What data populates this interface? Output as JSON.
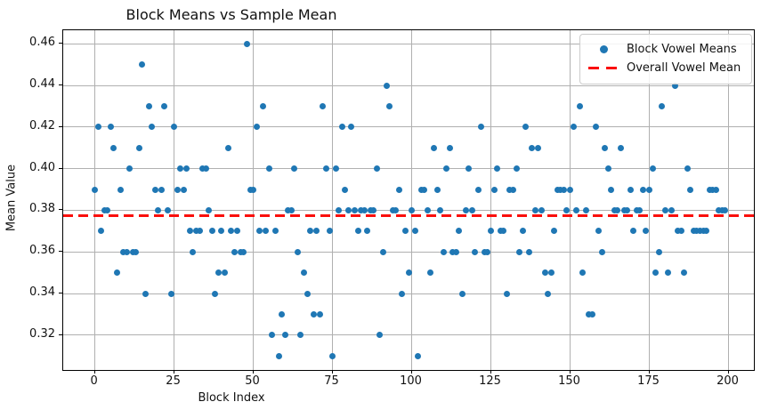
{
  "figure": {
    "title": "Block Means vs Sample Mean"
  },
  "axes": {
    "xlabel": "Block Index",
    "ylabel": "Mean Value",
    "xticks": [
      0,
      25,
      50,
      75,
      100,
      125,
      150,
      175,
      200
    ],
    "yticks": [
      0.32,
      0.34,
      0.36,
      0.38,
      0.4,
      0.42,
      0.44,
      0.46
    ]
  },
  "legend": {
    "items": [
      {
        "label": "Block Vowel Means",
        "marker": "dot",
        "color": "#1f77b4"
      },
      {
        "label": "Overall Vowel Mean",
        "marker": "dashes",
        "color": "#fa0f0c"
      }
    ]
  },
  "colors": {
    "points": "#1f77b4",
    "mean_line": "#fa0f0c",
    "grid": "#b0b0b0"
  },
  "chart_data": {
    "type": "scatter",
    "title": "Block Means vs Sample Mean",
    "xlabel": "Block Index",
    "ylabel": "Mean Value",
    "xlim": [
      -10,
      208
    ],
    "ylim": [
      0.3033,
      0.4665
    ],
    "grid": true,
    "legend_position": "upper right",
    "overall_mean": {
      "name": "Overall Vowel Mean",
      "value": 0.3776,
      "style": "dashed",
      "color": "#fa0f0c"
    },
    "series": [
      {
        "name": "Block Vowel Means",
        "marker": "circle",
        "color": "#1f77b4",
        "x": [
          0,
          1,
          2,
          3,
          4,
          5,
          6,
          7,
          8,
          9,
          10,
          11,
          12,
          13,
          14,
          15,
          16,
          17,
          18,
          19,
          20,
          21,
          22,
          23,
          24,
          25,
          26,
          27,
          28,
          29,
          30,
          31,
          32,
          33,
          34,
          35,
          36,
          37,
          38,
          39,
          40,
          41,
          42,
          43,
          44,
          45,
          46,
          47,
          48,
          49,
          50,
          51,
          52,
          53,
          54,
          55,
          56,
          57,
          58,
          59,
          60,
          61,
          62,
          63,
          64,
          65,
          66,
          67,
          68,
          69,
          70,
          71,
          72,
          73,
          74,
          75,
          76,
          77,
          78,
          79,
          80,
          81,
          82,
          83,
          84,
          85,
          86,
          87,
          88,
          89,
          90,
          91,
          92,
          93,
          94,
          95,
          96,
          97,
          98,
          99,
          100,
          101,
          102,
          103,
          104,
          105,
          106,
          107,
          108,
          109,
          110,
          111,
          112,
          113,
          114,
          115,
          116,
          117,
          118,
          119,
          120,
          121,
          122,
          123,
          124,
          125,
          126,
          127,
          128,
          129,
          130,
          131,
          132,
          133,
          134,
          135,
          136,
          137,
          138,
          139,
          140,
          141,
          142,
          143,
          144,
          145,
          146,
          147,
          148,
          149,
          150,
          151,
          152,
          153,
          154,
          155,
          156,
          157,
          158,
          159,
          160,
          161,
          162,
          163,
          164,
          165,
          166,
          167,
          168,
          169,
          170,
          171,
          172,
          173,
          174,
          175,
          176,
          177,
          178,
          179,
          180,
          181,
          182,
          183,
          184,
          185,
          186,
          187,
          188,
          189,
          190,
          191,
          192,
          193,
          194,
          195,
          196,
          197,
          198,
          199
        ],
        "y": [
          0.39,
          0.42,
          0.37,
          0.38,
          0.38,
          0.42,
          0.41,
          0.35,
          0.39,
          0.36,
          0.36,
          0.4,
          0.36,
          0.36,
          0.41,
          0.45,
          0.34,
          0.43,
          0.42,
          0.39,
          0.38,
          0.39,
          0.43,
          0.38,
          0.34,
          0.42,
          0.39,
          0.4,
          0.39,
          0.4,
          0.37,
          0.36,
          0.37,
          0.37,
          0.4,
          0.4,
          0.38,
          0.37,
          0.34,
          0.35,
          0.37,
          0.35,
          0.41,
          0.37,
          0.36,
          0.37,
          0.36,
          0.36,
          0.46,
          0.39,
          0.39,
          0.42,
          0.37,
          0.43,
          0.37,
          0.4,
          0.32,
          0.37,
          0.31,
          0.33,
          0.32,
          0.38,
          0.38,
          0.4,
          0.36,
          0.32,
          0.35,
          0.34,
          0.37,
          0.33,
          0.37,
          0.33,
          0.43,
          0.4,
          0.37,
          0.31,
          0.4,
          0.38,
          0.42,
          0.39,
          0.38,
          0.42,
          0.38,
          0.37,
          0.38,
          0.38,
          0.37,
          0.38,
          0.38,
          0.4,
          0.32,
          0.36,
          0.44,
          0.43,
          0.38,
          0.38,
          0.39,
          0.34,
          0.37,
          0.35,
          0.38,
          0.37,
          0.31,
          0.39,
          0.39,
          0.38,
          0.35,
          0.41,
          0.39,
          0.38,
          0.36,
          0.4,
          0.41,
          0.36,
          0.36,
          0.37,
          0.34,
          0.38,
          0.4,
          0.38,
          0.36,
          0.39,
          0.42,
          0.36,
          0.36,
          0.37,
          0.39,
          0.4,
          0.37,
          0.37,
          0.34,
          0.39,
          0.39,
          0.4,
          0.36,
          0.37,
          0.42,
          0.36,
          0.41,
          0.38,
          0.41,
          0.38,
          0.35,
          0.34,
          0.35,
          0.37,
          0.39,
          0.39,
          0.39,
          0.38,
          0.39,
          0.42,
          0.38,
          0.43,
          0.35,
          0.38,
          0.33,
          0.33,
          0.42,
          0.37,
          0.36,
          0.41,
          0.4,
          0.39,
          0.38,
          0.38,
          0.41,
          0.38,
          0.38,
          0.39,
          0.37,
          0.38,
          0.38,
          0.39,
          0.37,
          0.39,
          0.4,
          0.35,
          0.36,
          0.43,
          0.38,
          0.35,
          0.38,
          0.44,
          0.37,
          0.37,
          0.35,
          0.4,
          0.39,
          0.37,
          0.37,
          0.37,
          0.37,
          0.37,
          0.39,
          0.39,
          0.39,
          0.38,
          0.38,
          0.38
        ]
      }
    ]
  }
}
